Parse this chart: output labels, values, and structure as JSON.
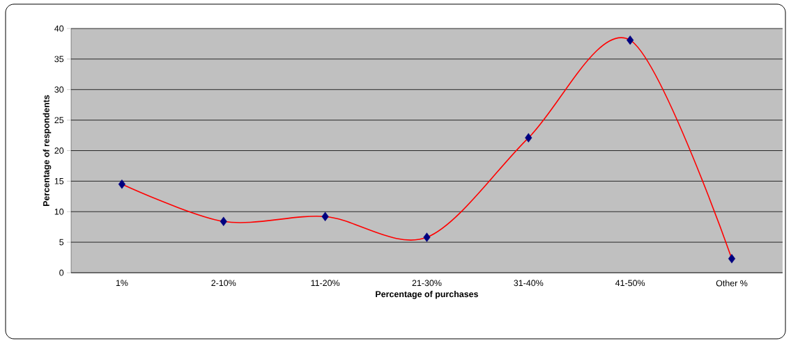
{
  "chart_data": {
    "type": "line",
    "xlabel": "Percentage of purchases",
    "ylabel": "Percentage of respondents",
    "categories": [
      "1%",
      "2-10%",
      "11-20%",
      "21-30%",
      "31-40%",
      "41-50%",
      "Other %"
    ],
    "series": [
      {
        "color": "#ff0000",
        "colors": [
          "#000080",
          "#000080",
          "#000080",
          "#000080",
          "#000080",
          "#000080",
          "#000080"
        ],
        "values": [
          14.5,
          8.4,
          9.2,
          5.8,
          22.1,
          38.1,
          2.3
        ]
      }
    ],
    "ylim": [
      0,
      40
    ],
    "yticks": [
      0,
      5,
      10,
      15,
      20,
      25,
      30,
      35,
      40
    ],
    "grid": "y",
    "marker": "diamond",
    "line_style": "solid"
  }
}
